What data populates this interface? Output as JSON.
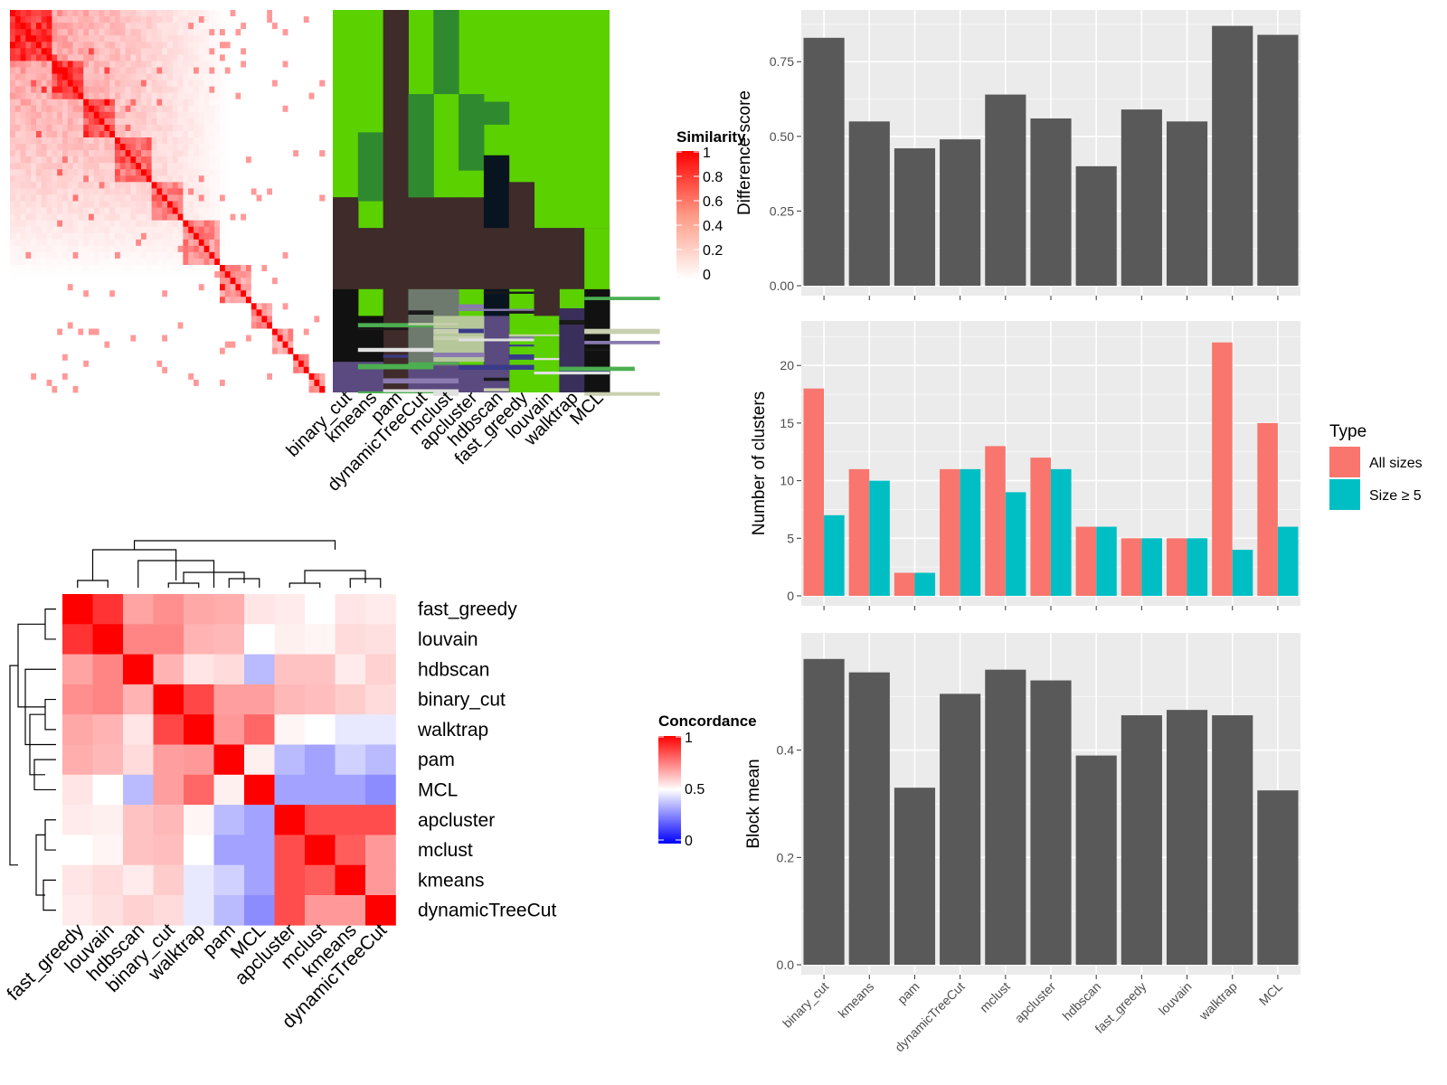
{
  "chart_data": [
    {
      "type": "heatmap",
      "panel": "similarity-heatmap",
      "legend_title": "Similarity",
      "legend_ticks": [
        "1",
        "0.8",
        "0.6",
        "0.4",
        "0.2",
        "0"
      ],
      "x_labels": [
        "binary_cut",
        "kmeans",
        "pam",
        "dynamicTreeCut",
        "mclust",
        "apcluster",
        "hdbscan",
        "fast_greedy",
        "louvain",
        "walktrap",
        "MCL"
      ],
      "colors": {
        "high": "#ff0000",
        "low": "#ffffff",
        "cluster_main": "#5bd100"
      }
    },
    {
      "type": "heatmap",
      "panel": "concordance-heatmap",
      "legend_title": "Concordance",
      "legend_ticks": [
        "1",
        "0.5",
        "0"
      ],
      "row_labels": [
        "fast_greedy",
        "louvain",
        "hdbscan",
        "binary_cut",
        "walktrap",
        "pam",
        "MCL",
        "apcluster",
        "mclust",
        "kmeans",
        "dynamicTreeCut"
      ],
      "col_labels": [
        "fast_greedy",
        "louvain",
        "hdbscan",
        "binary_cut",
        "walktrap",
        "pam",
        "MCL",
        "apcluster",
        "mclust",
        "kmeans",
        "dynamicTreeCut"
      ],
      "values": [
        [
          1.0,
          0.9,
          0.68,
          0.72,
          0.67,
          0.66,
          0.55,
          0.54,
          0.5,
          0.55,
          0.54
        ],
        [
          0.9,
          1.0,
          0.74,
          0.74,
          0.65,
          0.64,
          0.5,
          0.53,
          0.52,
          0.57,
          0.56
        ],
        [
          0.68,
          0.74,
          1.0,
          0.65,
          0.55,
          0.57,
          0.35,
          0.62,
          0.62,
          0.54,
          0.59
        ],
        [
          0.72,
          0.74,
          0.65,
          1.0,
          0.86,
          0.69,
          0.69,
          0.64,
          0.63,
          0.6,
          0.57
        ],
        [
          0.67,
          0.65,
          0.55,
          0.86,
          1.0,
          0.7,
          0.8,
          0.52,
          0.5,
          0.45,
          0.45
        ],
        [
          0.66,
          0.64,
          0.57,
          0.69,
          0.7,
          1.0,
          0.53,
          0.35,
          0.3,
          0.4,
          0.35
        ],
        [
          0.55,
          0.5,
          0.35,
          0.69,
          0.8,
          0.53,
          1.0,
          0.3,
          0.3,
          0.3,
          0.25
        ],
        [
          0.54,
          0.53,
          0.62,
          0.64,
          0.52,
          0.35,
          0.3,
          1.0,
          0.85,
          0.85,
          0.85
        ],
        [
          0.5,
          0.52,
          0.62,
          0.63,
          0.5,
          0.3,
          0.3,
          0.85,
          1.0,
          0.82,
          0.7
        ],
        [
          0.55,
          0.57,
          0.54,
          0.6,
          0.45,
          0.4,
          0.3,
          0.85,
          0.82,
          1.0,
          0.7
        ],
        [
          0.54,
          0.56,
          0.59,
          0.57,
          0.45,
          0.35,
          0.25,
          0.85,
          0.7,
          0.7,
          1.0
        ]
      ]
    },
    {
      "type": "bar",
      "panel": "difference-score",
      "categories": [
        "binary_cut",
        "kmeans",
        "pam",
        "dynamicTreeCut",
        "mclust",
        "apcluster",
        "hdbscan",
        "fast_greedy",
        "louvain",
        "walktrap",
        "MCL"
      ],
      "values": [
        0.83,
        0.55,
        0.46,
        0.49,
        0.64,
        0.56,
        0.4,
        0.59,
        0.55,
        0.87,
        0.84
      ],
      "ylabel": "Difference score",
      "ylim": [
        0,
        0.89
      ],
      "yticks": [
        0.0,
        0.25,
        0.5,
        0.75
      ],
      "ytick_labels": [
        "0.00",
        "0.25",
        "0.50",
        "0.75"
      ],
      "color": "#595959"
    },
    {
      "type": "bar",
      "panel": "number-of-clusters",
      "categories": [
        "binary_cut",
        "kmeans",
        "pam",
        "dynamicTreeCut",
        "mclust",
        "apcluster",
        "hdbscan",
        "fast_greedy",
        "louvain",
        "walktrap",
        "MCL"
      ],
      "series": [
        {
          "name": "All sizes",
          "values": [
            18,
            11,
            2,
            11,
            13,
            12,
            6,
            5,
            5,
            22,
            15
          ],
          "color": "#f8766d"
        },
        {
          "name": "Size ≥ 5",
          "values": [
            7,
            10,
            2,
            11,
            9,
            11,
            6,
            5,
            5,
            4,
            6
          ],
          "color": "#00bfc4"
        }
      ],
      "ylabel": "Number of clusters",
      "ylim": [
        0,
        23
      ],
      "yticks": [
        0,
        5,
        10,
        15,
        20
      ],
      "legend_title": "Type",
      "legend": "right"
    },
    {
      "type": "bar",
      "panel": "block-mean",
      "categories": [
        "binary_cut",
        "kmeans",
        "pam",
        "dynamicTreeCut",
        "mclust",
        "apcluster",
        "hdbscan",
        "fast_greedy",
        "louvain",
        "walktrap",
        "MCL"
      ],
      "values": [
        0.57,
        0.545,
        0.33,
        0.505,
        0.55,
        0.53,
        0.39,
        0.465,
        0.475,
        0.465,
        0.325
      ],
      "ylabel": "Block mean",
      "ylim": [
        0,
        0.6
      ],
      "yticks": [
        0.0,
        0.2,
        0.4
      ],
      "ytick_labels": [
        "0.0",
        "0.2",
        "0.4"
      ],
      "color": "#595959"
    }
  ]
}
